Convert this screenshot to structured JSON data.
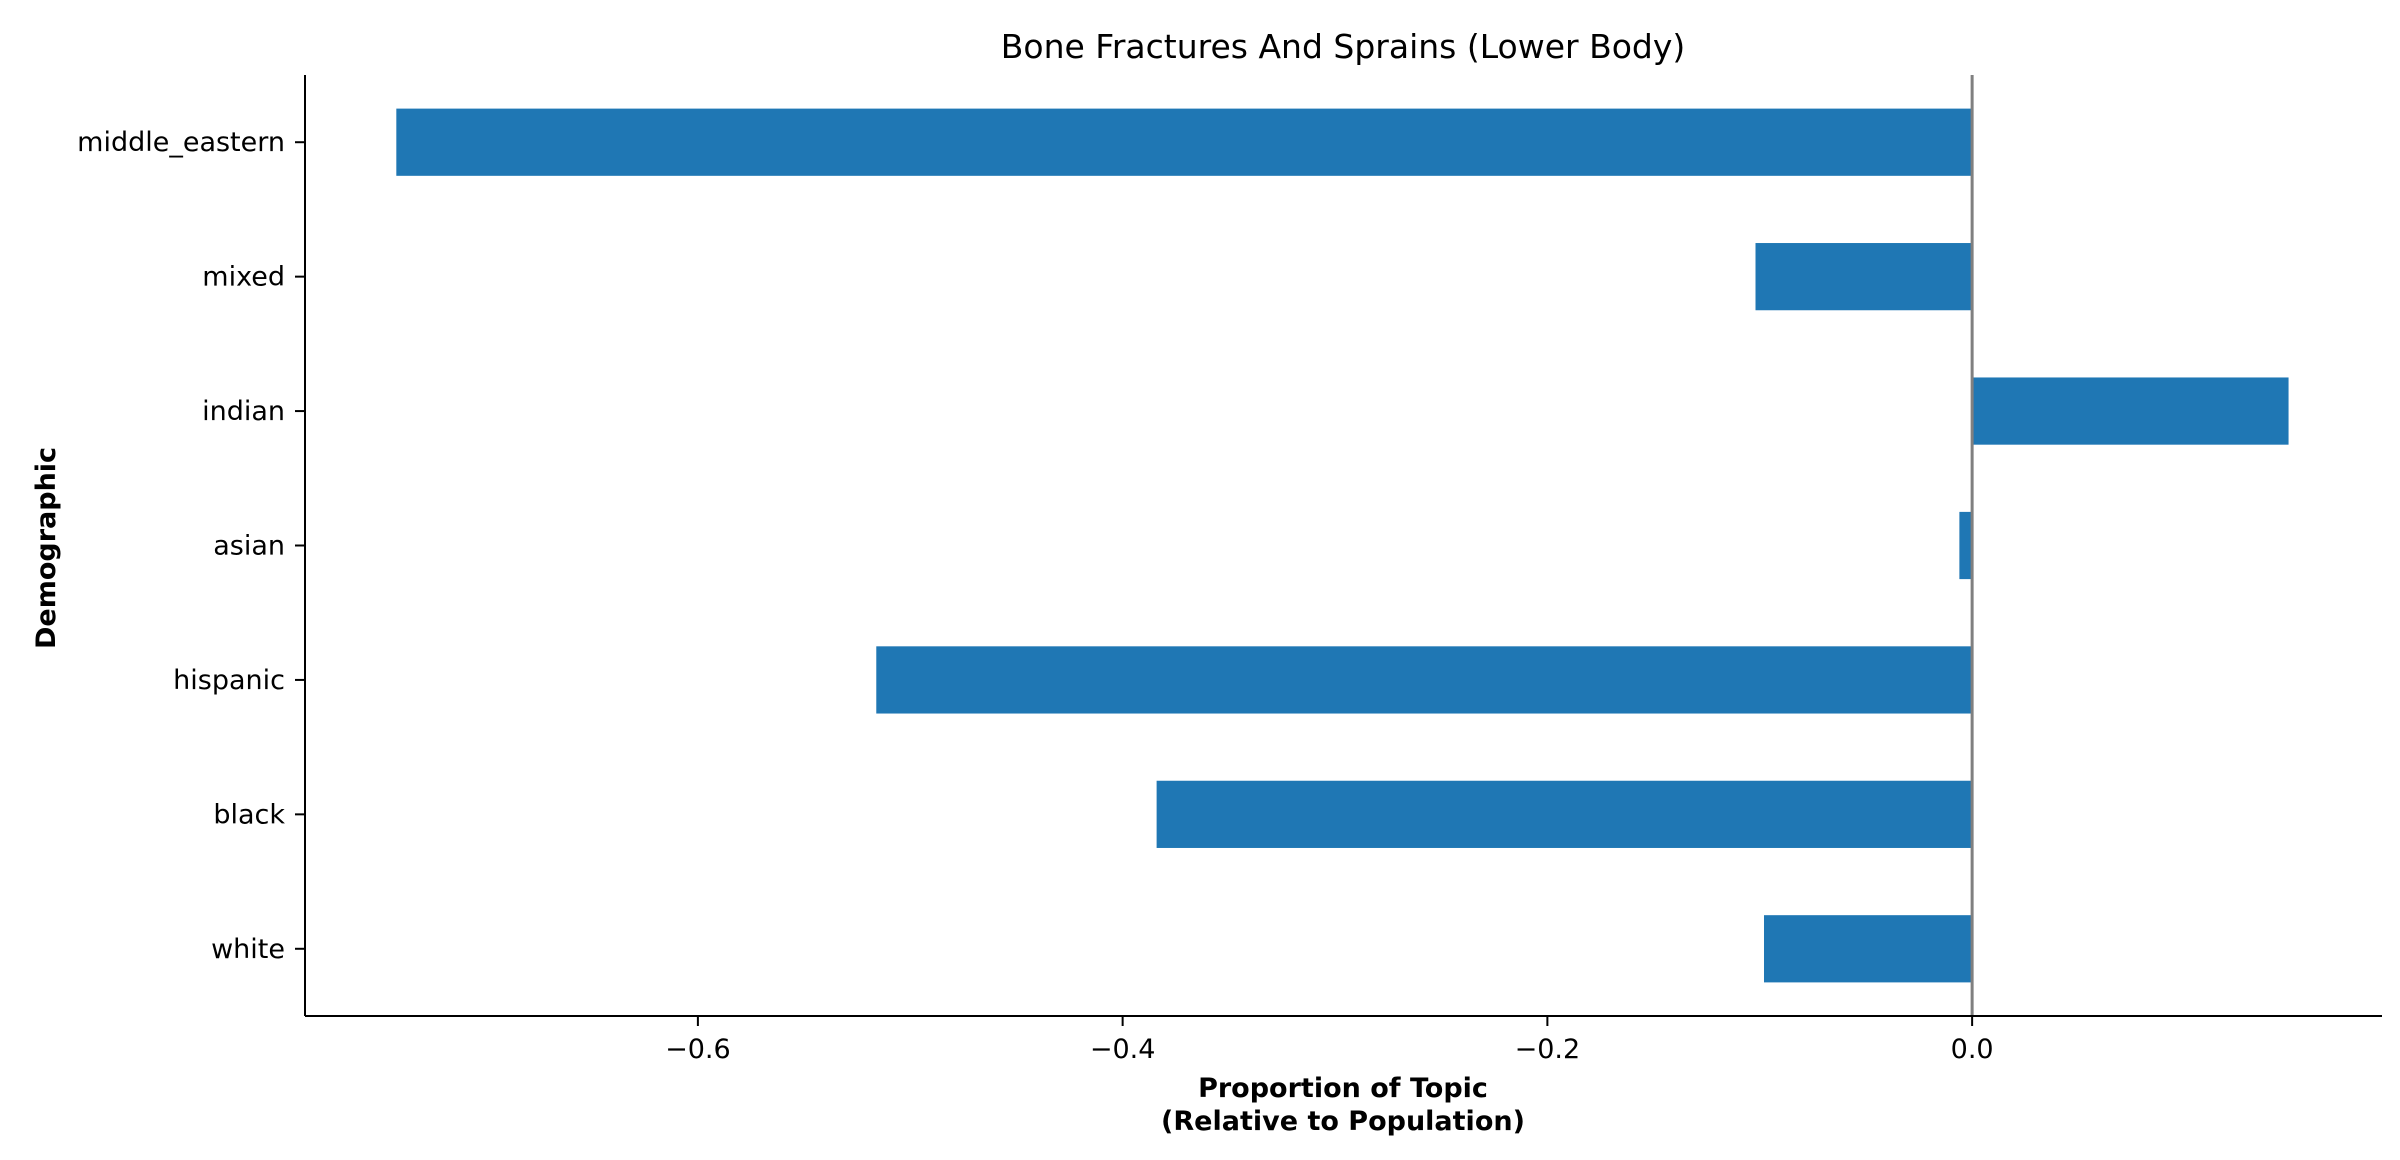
{
  "chart_data": {
    "type": "bar",
    "orientation": "horizontal",
    "title": "Bone Fractures And Sprains (Lower Body)",
    "xlabel_lines": [
      "Proportion of Topic",
      "(Relative to Population)"
    ],
    "ylabel": "Demographic",
    "categories": [
      "middle_eastern",
      "mixed",
      "indian",
      "asian",
      "hispanic",
      "black",
      "white"
    ],
    "values": [
      -0.742,
      -0.102,
      0.149,
      -0.006,
      -0.516,
      -0.384,
      -0.098
    ],
    "xlim": [
      -0.785,
      0.193
    ],
    "xticks": [
      -0.6,
      -0.4,
      -0.2,
      0.0
    ],
    "xtick_labels": [
      "−0.6",
      "−0.4",
      "−0.2",
      "0.0"
    ],
    "bar_color": "#1f77b4",
    "zero_line_color": "#808080",
    "grid": false,
    "legend": "none"
  }
}
